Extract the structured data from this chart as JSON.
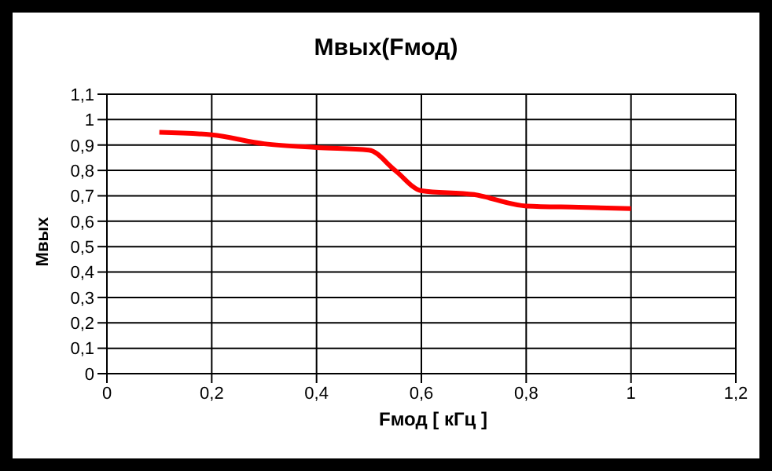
{
  "chart_data": {
    "type": "line",
    "title": "Mвых(Fмод)",
    "xlabel": "Fмод [ кГц ]",
    "ylabel": "Mвых",
    "x": [
      0.1,
      0.2,
      0.3,
      0.4,
      0.5,
      0.55,
      0.6,
      0.7,
      0.8,
      0.9,
      1
    ],
    "series": [
      {
        "color": "#ff0000",
        "values": [
          0.95,
          0.94,
          0.905,
          0.89,
          0.88,
          0.8,
          0.72,
          0.705,
          0.66,
          0.655,
          0.65
        ]
      }
    ],
    "xlim": [
      0,
      1.2
    ],
    "xticks": [
      0,
      {
        "value": 0.2,
        "label": "0,2"
      },
      {
        "value": 0.4,
        "label": "0,4"
      },
      {
        "value": 0.6,
        "label": "0,6"
      },
      {
        "value": 0.8,
        "label": "0,8"
      },
      1,
      {
        "value": 1.2,
        "label": "1,2"
      }
    ],
    "ylim": [
      0,
      1.1
    ],
    "yticks": [
      0,
      {
        "value": 0.1,
        "label": "0,1"
      },
      {
        "value": 0.2,
        "label": "0,2"
      },
      {
        "value": 0.3,
        "label": "0,3"
      },
      {
        "value": 0.4,
        "label": "0,4"
      },
      {
        "value": 0.5,
        "label": "0,5"
      },
      {
        "value": 0.6,
        "label": "0,6"
      },
      {
        "value": 0.7,
        "label": "0,7"
      },
      {
        "value": 0.8,
        "label": "0,8"
      },
      {
        "value": 0.9,
        "label": "0,9"
      },
      1,
      {
        "value": 1.1,
        "label": "1,1"
      }
    ],
    "grid": true,
    "legend": false,
    "marker": "none",
    "line_style": "solid"
  }
}
